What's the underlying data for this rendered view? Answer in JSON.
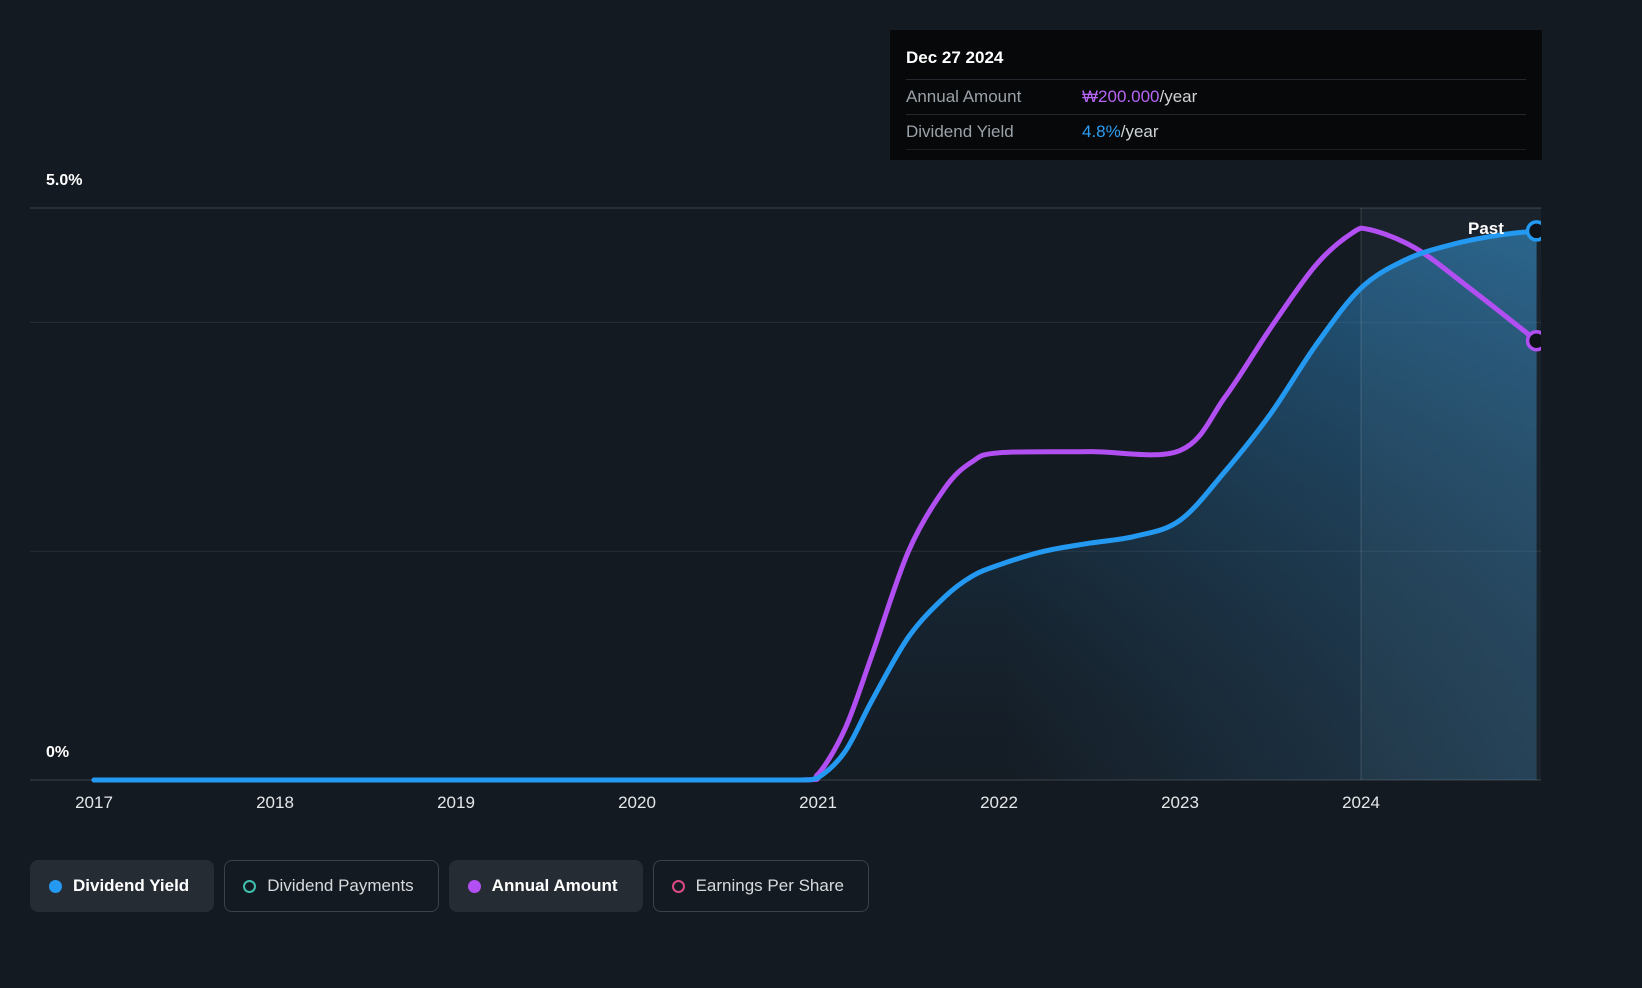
{
  "tooltip": {
    "date": "Dec 27 2024",
    "rows": [
      {
        "label": "Annual Amount",
        "value": "₩200.000",
        "suffix": "/year",
        "color": "#b665f4"
      },
      {
        "label": "Dividend Yield",
        "value": "4.8%",
        "suffix": "/year",
        "color": "#2e9df2"
      }
    ]
  },
  "chart": {
    "past_label": "Past"
  },
  "chart_data": {
    "type": "area",
    "title": "",
    "x_ticks": [
      "2017",
      "2018",
      "2019",
      "2020",
      "2021",
      "2022",
      "2023",
      "2024"
    ],
    "y_axis": {
      "top_label": "5.0%",
      "bottom_label": "0%",
      "min_pct": 0,
      "max_pct": 5,
      "gridlines_pct": [
        0,
        2,
        4,
        5
      ]
    },
    "divider_year": 2024,
    "legend_position": "bottom",
    "series": [
      {
        "name": "Dividend Yield",
        "color": "#2499f2",
        "area_fill": true,
        "unit": "percent",
        "latest_value_label": "4.8%/year",
        "points": [
          [
            2017.0,
            0
          ],
          [
            2017.5,
            0
          ],
          [
            2018.0,
            0
          ],
          [
            2018.5,
            0
          ],
          [
            2019.0,
            0
          ],
          [
            2019.5,
            0
          ],
          [
            2020.0,
            0
          ],
          [
            2020.5,
            0
          ],
          [
            2020.9,
            0
          ],
          [
            2021.0,
            0.02
          ],
          [
            2021.15,
            0.25
          ],
          [
            2021.3,
            0.7
          ],
          [
            2021.5,
            1.25
          ],
          [
            2021.7,
            1.6
          ],
          [
            2021.85,
            1.78
          ],
          [
            2022.0,
            1.88
          ],
          [
            2022.25,
            2.0
          ],
          [
            2022.5,
            2.07
          ],
          [
            2022.75,
            2.13
          ],
          [
            2023.0,
            2.27
          ],
          [
            2023.25,
            2.7
          ],
          [
            2023.5,
            3.2
          ],
          [
            2023.75,
            3.8
          ],
          [
            2024.0,
            4.3
          ],
          [
            2024.25,
            4.55
          ],
          [
            2024.5,
            4.68
          ],
          [
            2024.75,
            4.76
          ],
          [
            2024.97,
            4.8
          ]
        ]
      },
      {
        "name": "Annual Amount",
        "color": "#b24ff2",
        "area_fill": false,
        "unit": "KRW per year, plotted on yield axis scale",
        "latest_value_label": "₩200.000/year",
        "points": [
          [
            2017.0,
            0
          ],
          [
            2018.0,
            0
          ],
          [
            2019.0,
            0
          ],
          [
            2020.0,
            0
          ],
          [
            2020.9,
            0
          ],
          [
            2021.0,
            0.05
          ],
          [
            2021.15,
            0.45
          ],
          [
            2021.3,
            1.1
          ],
          [
            2021.5,
            2.0
          ],
          [
            2021.7,
            2.55
          ],
          [
            2021.85,
            2.78
          ],
          [
            2022.0,
            2.86
          ],
          [
            2022.5,
            2.87
          ],
          [
            2023.0,
            2.88
          ],
          [
            2023.25,
            3.35
          ],
          [
            2023.5,
            3.95
          ],
          [
            2023.75,
            4.5
          ],
          [
            2023.95,
            4.78
          ],
          [
            2024.05,
            4.81
          ],
          [
            2024.3,
            4.65
          ],
          [
            2024.6,
            4.3
          ],
          [
            2024.97,
            3.84
          ]
        ]
      }
    ]
  },
  "legend": {
    "items": [
      {
        "label": "Dividend Yield",
        "marker": "filled",
        "color": "#2499f2",
        "active": true
      },
      {
        "label": "Dividend Payments",
        "marker": "outline",
        "color": "#3fc1ad",
        "active": false
      },
      {
        "label": "Annual Amount",
        "marker": "filled",
        "color": "#b24ff2",
        "active": true
      },
      {
        "label": "Earnings Per Share",
        "marker": "outline",
        "color": "#dc4a86",
        "active": false
      }
    ]
  }
}
